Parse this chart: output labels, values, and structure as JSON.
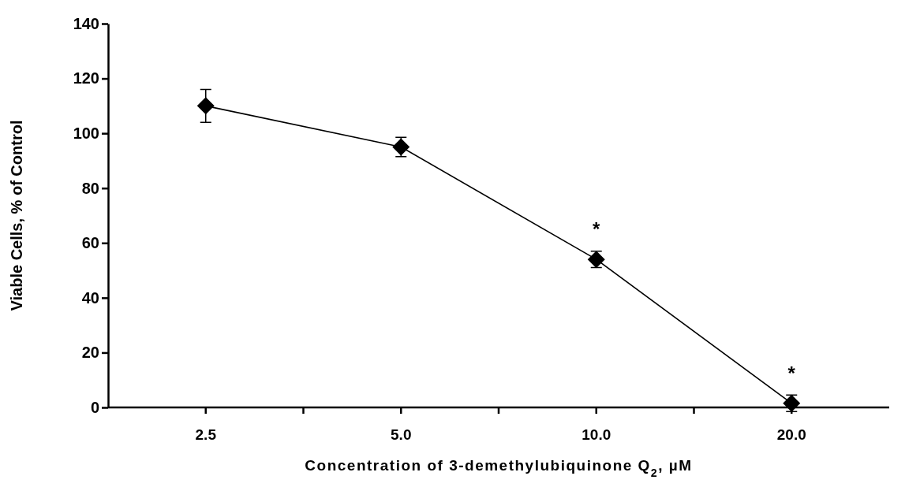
{
  "chart_data": {
    "type": "line",
    "xlabel": "Concentration of 3-demethylubiquinone Q$_{2}$, µM",
    "ylabel": "Viable Cells, % of Control",
    "categories": [
      "2.5",
      "5.0",
      "10.0",
      "20.0"
    ],
    "series": [
      {
        "color": "#000000",
        "values": [
          110,
          95,
          54,
          1.5
        ],
        "errors": [
          6,
          3.5,
          3,
          3
        ]
      }
    ],
    "ylim": [
      0,
      140
    ],
    "yticks": [
      0,
      20,
      40,
      60,
      80,
      100,
      120,
      140
    ],
    "marker": "diamond",
    "line_style": "solid",
    "grid": false,
    "annotations": [
      {
        "text": "*",
        "x": "10.0",
        "y": 54
      },
      {
        "text": "*",
        "x": "20.0",
        "y": 1.5
      }
    ]
  }
}
